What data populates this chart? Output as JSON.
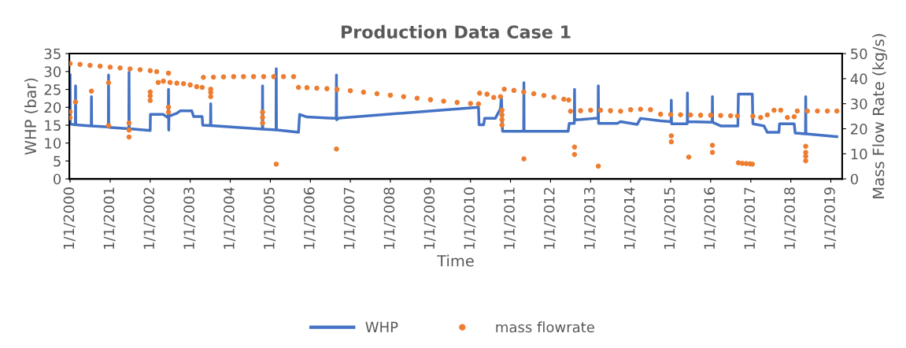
{
  "chart_data": {
    "type": "line",
    "title": "Production Data Case 1",
    "xlabel": "Time",
    "ylabel": "WHP (bar)",
    "y2label": "Mass Flow Rate (kg/s)",
    "xlim": [
      "1999-12-25",
      "2019-04-15"
    ],
    "xticks": [
      {
        "value": "2000-01-01",
        "label": "1/1/2000"
      },
      {
        "value": "2001-01-01",
        "label": "1/1/2001"
      },
      {
        "value": "2002-01-01",
        "label": "1/1/2002"
      },
      {
        "value": "2003-01-01",
        "label": "1/1/2003"
      },
      {
        "value": "2004-01-01",
        "label": "1/1/2004"
      },
      {
        "value": "2005-01-01",
        "label": "1/1/2005"
      },
      {
        "value": "2006-01-01",
        "label": "1/1/2006"
      },
      {
        "value": "2007-01-01",
        "label": "1/1/2007"
      },
      {
        "value": "2008-01-01",
        "label": "1/1/2008"
      },
      {
        "value": "2009-01-01",
        "label": "1/1/2009"
      },
      {
        "value": "2010-01-01",
        "label": "1/1/2010"
      },
      {
        "value": "2011-01-01",
        "label": "1/1/2011"
      },
      {
        "value": "2012-01-01",
        "label": "1/1/2012"
      },
      {
        "value": "2013-01-01",
        "label": "1/1/2013"
      },
      {
        "value": "2014-01-01",
        "label": "1/1/2014"
      },
      {
        "value": "2015-01-01",
        "label": "1/1/2015"
      },
      {
        "value": "2016-01-01",
        "label": "1/1/2016"
      },
      {
        "value": "2017-01-01",
        "label": "1/1/2017"
      },
      {
        "value": "2018-01-01",
        "label": "1/1/2018"
      },
      {
        "value": "2019-01-01",
        "label": "1/1/2019"
      }
    ],
    "ylim": [
      0,
      35
    ],
    "yticks": [
      0,
      5,
      10,
      15,
      20,
      25,
      30,
      35
    ],
    "y2lim": [
      0,
      50
    ],
    "y2ticks": [
      0,
      10,
      20,
      30,
      40,
      50
    ],
    "grid": false,
    "legend": "bottom",
    "series": [
      {
        "name": "WHP",
        "color": "#4472c4",
        "line_style": "solid",
        "x": [
          "2000-01-01",
          "2000-01-03",
          "2000-02-18",
          "2000-02-20",
          "2000-02-22",
          "2000-07-12",
          "2000-07-14",
          "2000-07-16",
          "2000-12-15",
          "2000-12-17",
          "2000-12-19",
          "2001-06-20",
          "2001-06-22",
          "2001-06-24",
          "2002-01-01",
          "2002-01-03",
          "2002-05-01",
          "2002-06-15",
          "2002-06-17",
          "2002-06-19",
          "2002-06-21",
          "2002-09-01",
          "2002-10-01",
          "2003-01-15",
          "2003-02-01",
          "2003-04-20",
          "2003-04-25",
          "2003-07-05",
          "2003-07-07",
          "2003-07-09",
          "2004-10-20",
          "2004-10-22",
          "2004-10-24",
          "2005-02-22",
          "2005-02-24",
          "2005-02-26",
          "2005-09-15",
          "2005-09-25",
          "2005-12-01",
          "2006-06-20",
          "2006-08-25",
          "2006-08-27",
          "2006-08-29",
          "2006-09-20",
          "2010-03-15",
          "2010-03-20",
          "2010-05-01",
          "2010-05-10",
          "2010-08-15",
          "2010-10-01",
          "2010-10-10",
          "2010-10-20",
          "2011-05-01",
          "2011-05-03",
          "2011-05-05",
          "2012-06-10",
          "2012-06-20",
          "2012-08-05",
          "2012-08-07",
          "2012-08-09",
          "2012-10-10",
          "2013-02-01",
          "2013-03-10",
          "2013-03-12",
          "2013-03-14",
          "2013-09-01",
          "2013-10-01",
          "2014-03-01",
          "2014-04-01",
          "2014-10-01",
          "2015-01-05",
          "2015-01-07",
          "2015-01-09",
          "2015-06-01",
          "2015-06-03",
          "2015-06-05",
          "2016-01-15",
          "2016-01-17",
          "2016-01-19",
          "2016-04-01",
          "2016-09-05",
          "2016-09-10",
          "2017-01-15",
          "2017-01-20",
          "2017-05-01",
          "2017-06-01",
          "2017-09-15",
          "2017-09-20",
          "2018-02-01",
          "2018-02-10",
          "2018-05-15",
          "2018-05-17",
          "2018-05-19",
          "2019-02-25"
        ],
        "values": [
          29,
          15.3,
          15.1,
          26,
          15.1,
          14.8,
          23,
          14.8,
          14.5,
          29,
          14.4,
          14.0,
          29.8,
          14.0,
          13.5,
          18.0,
          18.0,
          17.0,
          25,
          13.6,
          17.5,
          18.3,
          19.0,
          19.0,
          17.4,
          17.4,
          15.0,
          14.9,
          21,
          14.9,
          13.9,
          26,
          13.9,
          13.7,
          30.8,
          13.7,
          13.0,
          18.0,
          17.3,
          17.0,
          16.9,
          29,
          16.5,
          17.0,
          20.0,
          15.1,
          15.1,
          16.9,
          16.9,
          19.6,
          23,
          13.3,
          13.3,
          26.9,
          13.3,
          13.3,
          15.5,
          15.5,
          25,
          16.5,
          16.6,
          16.9,
          16.9,
          26,
          15.5,
          15.5,
          16,
          15.2,
          16.9,
          16.2,
          16.0,
          22,
          15.4,
          15.4,
          24,
          16,
          15.8,
          23,
          15.8,
          14.8,
          14.8,
          23.7,
          23.7,
          15.4,
          14.8,
          13.0,
          13.0,
          15.4,
          15.4,
          12.8,
          12.6,
          23,
          12.6,
          11.8
        ]
      },
      {
        "name": "mass flowrate",
        "type": "scatter",
        "axis": "y2",
        "color": "#ed7d31",
        "marker": "circle",
        "x": [
          "2000-01-01",
          "2000-04-01",
          "2000-07-01",
          "2000-10-01",
          "2001-01-01",
          "2001-04-01",
          "2001-07-01",
          "2001-10-01",
          "2002-01-01",
          "2002-03-01",
          "2002-03-15",
          "2002-05-01",
          "2002-07-01",
          "2002-09-01",
          "2002-11-01",
          "2003-01-01",
          "2003-03-01",
          "2003-04-20",
          "2003-05-01",
          "2003-08-01",
          "2003-11-01",
          "2004-02-01",
          "2004-05-01",
          "2004-08-01",
          "2004-11-01",
          "2005-02-01",
          "2005-05-01",
          "2005-08-01",
          "2005-09-15",
          "2005-12-01",
          "2006-03-01",
          "2006-06-01",
          "2006-09-01",
          "2007-01-01",
          "2007-05-01",
          "2007-09-01",
          "2008-01-01",
          "2008-05-01",
          "2008-09-01",
          "2009-01-01",
          "2009-05-01",
          "2009-09-01",
          "2010-01-01",
          "2010-03-15",
          "2010-03-25",
          "2010-06-01",
          "2010-08-01",
          "2010-10-01",
          "2010-11-05",
          "2011-02-01",
          "2011-05-01",
          "2011-08-01",
          "2011-11-01",
          "2012-02-01",
          "2012-05-01",
          "2012-06-15",
          "2012-07-01",
          "2012-10-01",
          "2013-01-01",
          "2013-04-01",
          "2013-07-01",
          "2013-10-01",
          "2014-01-01",
          "2014-04-01",
          "2014-07-01",
          "2014-10-01",
          "2015-01-01",
          "2015-04-01",
          "2015-07-01",
          "2015-10-01",
          "2016-01-01",
          "2016-04-01",
          "2016-07-01",
          "2016-09-01",
          "2017-01-20",
          "2017-04-01",
          "2017-06-01",
          "2017-08-01",
          "2017-10-01",
          "2017-12-01",
          "2018-02-01",
          "2018-03-01",
          "2018-06-01",
          "2018-09-01",
          "2018-12-01",
          "2019-02-25",
          "2000-01-01",
          "2000-01-01",
          "2000-02-20",
          "2000-07-14",
          "2000-12-17",
          "2000-12-17",
          "2001-06-22",
          "2001-06-22",
          "2001-06-22",
          "2002-01-01",
          "2002-01-01",
          "2002-01-01",
          "2002-06-17",
          "2002-06-17",
          "2002-06-17",
          "2003-07-07",
          "2003-07-07",
          "2003-07-07",
          "2004-10-22",
          "2004-10-22",
          "2004-10-22",
          "2005-02-24",
          "2006-08-27",
          "2010-10-15",
          "2010-10-15",
          "2010-10-15",
          "2010-10-15",
          "2011-05-03",
          "2012-08-07",
          "2012-08-07",
          "2013-03-12",
          "2015-01-07",
          "2015-01-07",
          "2015-06-15",
          "2016-01-17",
          "2016-01-17",
          "2016-09-10",
          "2016-10-15",
          "2016-11-20",
          "2016-12-25",
          "2017-01-15",
          "2018-05-17",
          "2018-05-17",
          "2018-05-17",
          "2018-05-17"
        ],
        "values": [
          46.0,
          45.7,
          45.3,
          45.0,
          44.6,
          44.3,
          43.9,
          43.6,
          43.2,
          42.8,
          38.5,
          39.0,
          38.5,
          38.2,
          38.0,
          37.5,
          36.8,
          36.5,
          40.5,
          40.6,
          40.7,
          40.8,
          40.8,
          40.8,
          40.8,
          40.8,
          40.8,
          40.8,
          36.5,
          36.4,
          36.2,
          36.0,
          35.7,
          35.2,
          34.6,
          34.0,
          33.4,
          32.8,
          32.2,
          31.6,
          31.0,
          30.5,
          30.1,
          29.9,
          34.2,
          33.8,
          32.5,
          32.8,
          35.8,
          35.3,
          34.7,
          34.0,
          33.3,
          32.6,
          31.8,
          31.5,
          27.0,
          27.2,
          27.4,
          27.4,
          27.2,
          27.0,
          27.6,
          27.8,
          27.6,
          25.8,
          25.7,
          25.6,
          25.5,
          25.4,
          25.4,
          25.3,
          25.2,
          25.1,
          25.0,
          24.5,
          25.5,
          27.4,
          27.4,
          24.5,
          24.8,
          27.1,
          27.1,
          27.1,
          27.1,
          27.1,
          26.8,
          24.4,
          30.7,
          35.0,
          38.4,
          21.3,
          22.3,
          19.5,
          16.7,
          34.7,
          33.1,
          31.3,
          42.2,
          28.6,
          26.6,
          35.8,
          34.5,
          32.8,
          26.6,
          24.5,
          22.3,
          5.9,
          11.9,
          27.4,
          25.5,
          23.6,
          21.5,
          8.0,
          12.7,
          9.7,
          5.1,
          17.2,
          14.8,
          8.7,
          13.4,
          10.6,
          6.4,
          6.2,
          6.1,
          6.0,
          5.9,
          13.0,
          10.6,
          9.0,
          7.2
        ]
      }
    ]
  }
}
